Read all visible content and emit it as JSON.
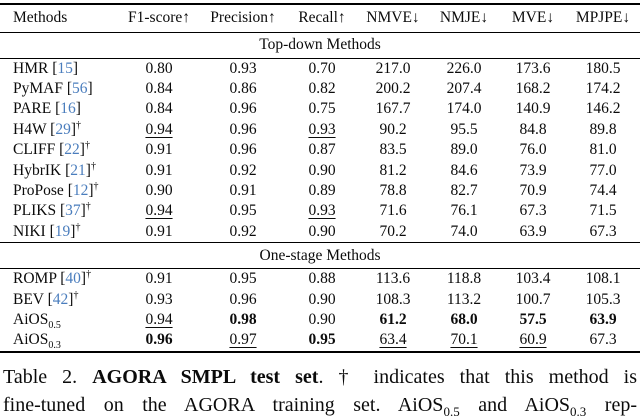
{
  "table": {
    "columns": [
      "Methods",
      "F1-score↑",
      "Precision↑",
      "Recall↑",
      "NMVE↓",
      "NMJE↓",
      "MVE↓",
      "MPJPE↓"
    ],
    "sections": [
      {
        "title": "Top-down Methods",
        "rows": [
          {
            "method": "HMR",
            "cite": "15",
            "cells": [
              {
                "v": "0.80"
              },
              {
                "v": "0.93"
              },
              {
                "v": "0.70"
              },
              {
                "v": "217.0"
              },
              {
                "v": "226.0"
              },
              {
                "v": "173.6"
              },
              {
                "v": "180.5"
              }
            ]
          },
          {
            "method": "PyMAF",
            "cite": "56",
            "cells": [
              {
                "v": "0.84"
              },
              {
                "v": "0.86"
              },
              {
                "v": "0.82"
              },
              {
                "v": "200.2"
              },
              {
                "v": "207.4"
              },
              {
                "v": "168.2"
              },
              {
                "v": "174.2"
              }
            ]
          },
          {
            "method": "PARE",
            "cite": "16",
            "cells": [
              {
                "v": "0.84"
              },
              {
                "v": "0.96"
              },
              {
                "v": "0.75"
              },
              {
                "v": "167.7"
              },
              {
                "v": "174.0"
              },
              {
                "v": "140.9"
              },
              {
                "v": "146.2"
              }
            ]
          },
          {
            "method": "H4W",
            "cite": "29",
            "dagger": "†",
            "cells": [
              {
                "v": "0.94",
                "u": true
              },
              {
                "v": "0.96"
              },
              {
                "v": "0.93",
                "u": true
              },
              {
                "v": "90.2"
              },
              {
                "v": "95.5"
              },
              {
                "v": "84.8"
              },
              {
                "v": "89.8"
              }
            ]
          },
          {
            "method": "CLIFF",
            "cite": "22",
            "dagger": "†",
            "cells": [
              {
                "v": "0.91"
              },
              {
                "v": "0.96"
              },
              {
                "v": "0.87"
              },
              {
                "v": "83.5"
              },
              {
                "v": "89.0"
              },
              {
                "v": "76.0"
              },
              {
                "v": "81.0"
              }
            ]
          },
          {
            "method": "HybrIK",
            "cite": "21",
            "dagger": "†",
            "cells": [
              {
                "v": "0.91"
              },
              {
                "v": "0.92"
              },
              {
                "v": "0.90"
              },
              {
                "v": "81.2"
              },
              {
                "v": "84.6"
              },
              {
                "v": "73.9"
              },
              {
                "v": "77.0"
              }
            ]
          },
          {
            "method": "ProPose",
            "cite": "12",
            "dagger": "†",
            "cells": [
              {
                "v": "0.90"
              },
              {
                "v": "0.91"
              },
              {
                "v": "0.89"
              },
              {
                "v": "78.8"
              },
              {
                "v": "82.7"
              },
              {
                "v": "70.9"
              },
              {
                "v": "74.4"
              }
            ]
          },
          {
            "method": "PLIKS",
            "cite": "37",
            "dagger": "†",
            "cells": [
              {
                "v": "0.94",
                "u": true
              },
              {
                "v": "0.95"
              },
              {
                "v": "0.93",
                "u": true
              },
              {
                "v": "71.6"
              },
              {
                "v": "76.1"
              },
              {
                "v": "67.3"
              },
              {
                "v": "71.5"
              }
            ]
          },
          {
            "method": "NIKI",
            "cite": "19",
            "dagger": "†",
            "cells": [
              {
                "v": "0.91"
              },
              {
                "v": "0.92"
              },
              {
                "v": "0.90"
              },
              {
                "v": "70.2"
              },
              {
                "v": "74.0"
              },
              {
                "v": "63.9"
              },
              {
                "v": "67.3"
              }
            ]
          }
        ]
      },
      {
        "title": "One-stage Methods",
        "rows": [
          {
            "method": "ROMP",
            "cite": "40",
            "dagger": "†",
            "cells": [
              {
                "v": "0.91"
              },
              {
                "v": "0.95"
              },
              {
                "v": "0.88"
              },
              {
                "v": "113.6"
              },
              {
                "v": "118.8"
              },
              {
                "v": "103.4"
              },
              {
                "v": "108.1"
              }
            ]
          },
          {
            "method": "BEV",
            "cite": "42",
            "dagger": "†",
            "cells": [
              {
                "v": "0.93"
              },
              {
                "v": "0.96"
              },
              {
                "v": "0.90"
              },
              {
                "v": "108.3"
              },
              {
                "v": "113.2"
              },
              {
                "v": "100.7"
              },
              {
                "v": "105.3"
              }
            ]
          },
          {
            "method": "AiOS",
            "sub": "0.5",
            "cells": [
              {
                "v": "0.94",
                "u": true
              },
              {
                "v": "0.98",
                "b": true
              },
              {
                "v": "0.90"
              },
              {
                "v": "61.2",
                "b": true
              },
              {
                "v": "68.0",
                "b": true
              },
              {
                "v": "57.5",
                "b": true
              },
              {
                "v": "63.9",
                "b": true
              }
            ]
          },
          {
            "method": "AiOS",
            "sub": "0.3",
            "cells": [
              {
                "v": "0.96",
                "b": true
              },
              {
                "v": "0.97",
                "u": true
              },
              {
                "v": "0.95",
                "b": true
              },
              {
                "v": "63.4",
                "u": true
              },
              {
                "v": "70.1",
                "u": true
              },
              {
                "v": "60.9",
                "u": true
              },
              {
                "v": "67.3"
              }
            ]
          }
        ]
      }
    ]
  },
  "caption": {
    "line1": {
      "prefix": "Table 2. ",
      "bold": "AGORA SMPL test set",
      "rest": ". † indicates that this method is"
    },
    "line2": {
      "p1": "fine-tuned on the AGORA training set. AiOS",
      "sub1": "0.5",
      "p2": " and AiOS",
      "sub2": "0.3",
      "p3": " rep-"
    }
  },
  "colors": {
    "citation_link": "#4a7dbd"
  }
}
